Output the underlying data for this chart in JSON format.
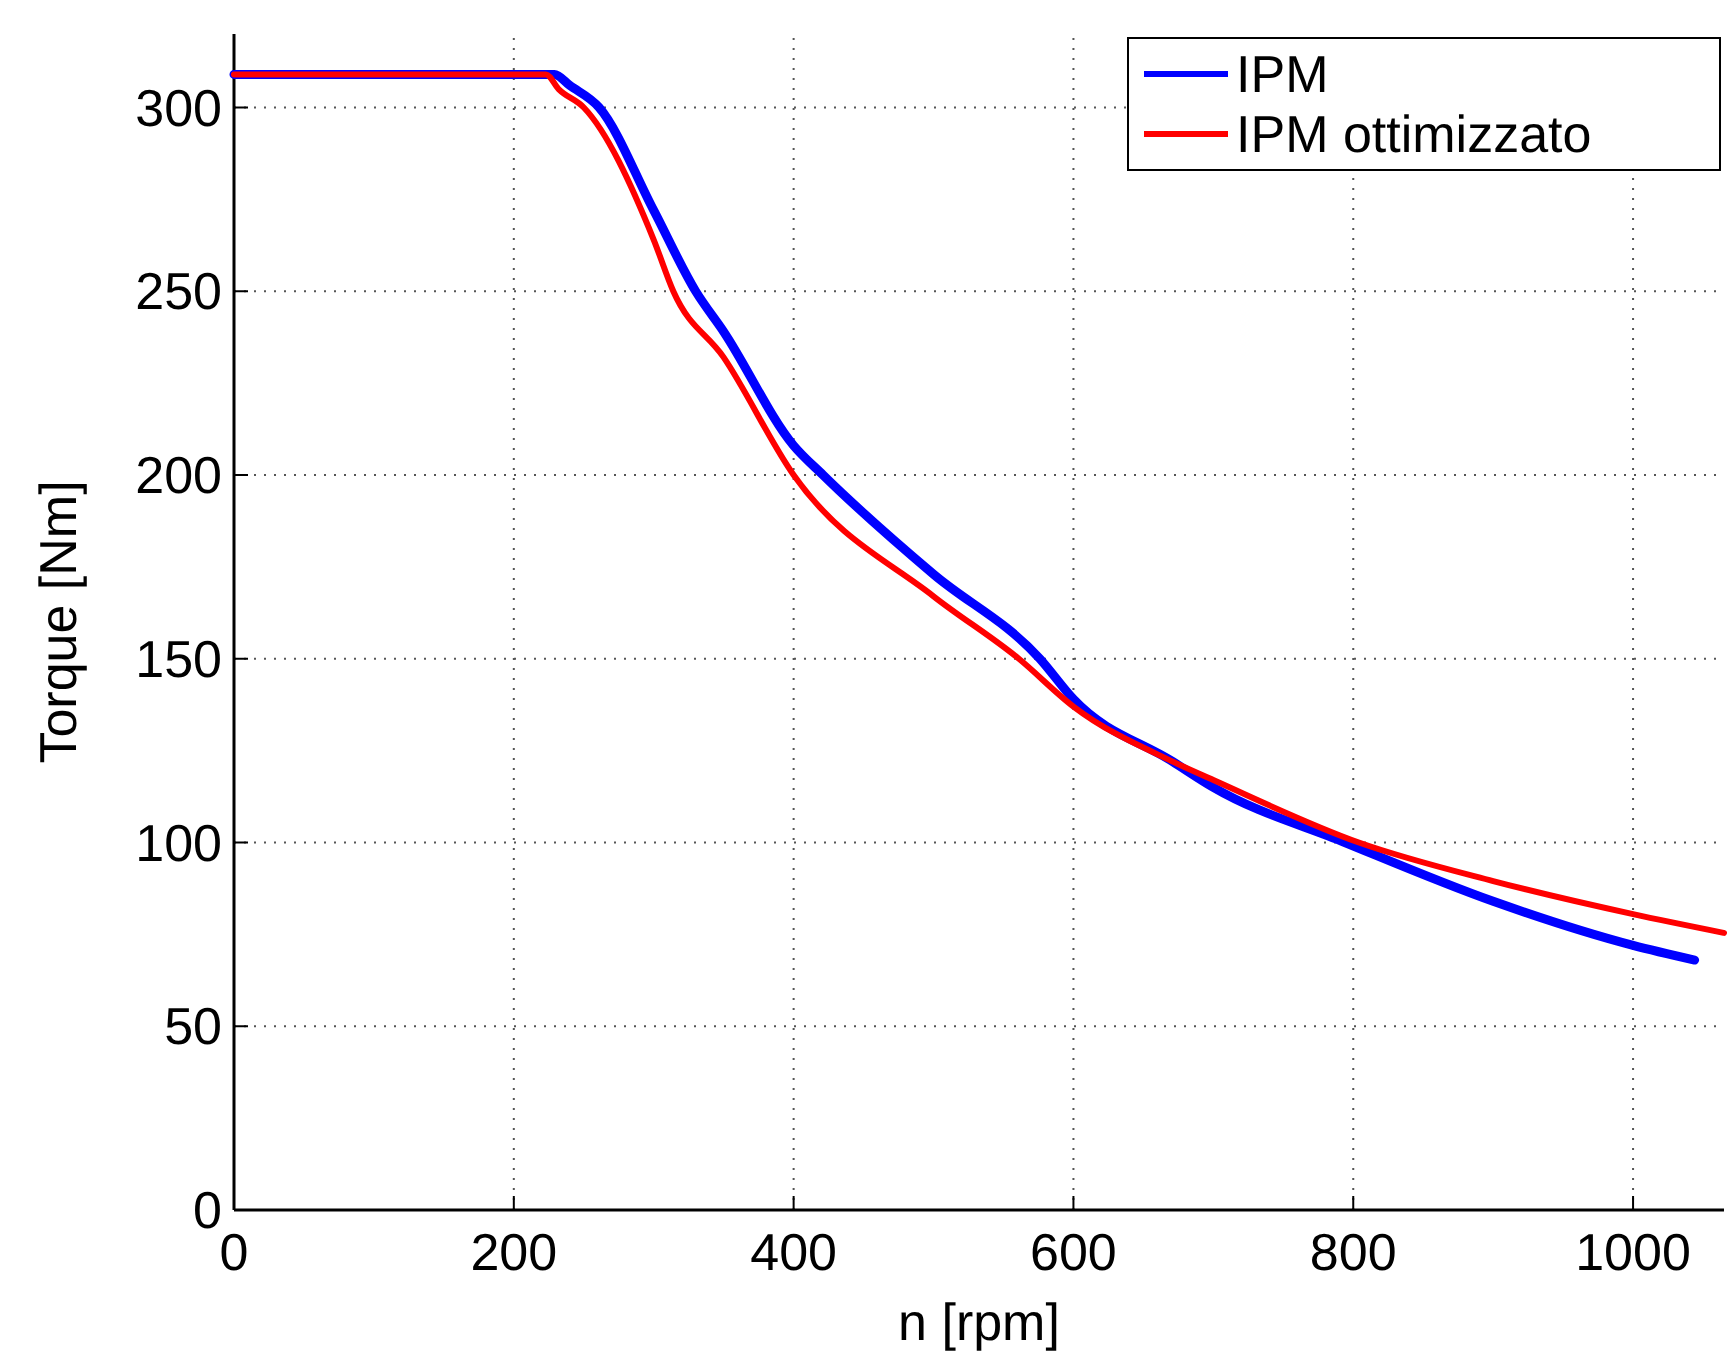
{
  "chart_data": {
    "type": "line",
    "xlabel": "n [rpm]",
    "ylabel": "Torque [Nm]",
    "xlim": [
      0,
      1065
    ],
    "ylim": [
      0,
      320
    ],
    "xticks": [
      0,
      200,
      400,
      600,
      800,
      1000
    ],
    "yticks": [
      0,
      50,
      100,
      150,
      200,
      250,
      300
    ],
    "grid": true,
    "legend": "top right",
    "line_style": "solid",
    "marker": "none",
    "series": [
      {
        "name": "IPM",
        "color": "#0000ff",
        "x": [
          0,
          220,
          229,
          240,
          261,
          300,
          330,
          350,
          400,
          421,
          500,
          576,
          600,
          671,
          700,
          794,
          900,
          1000,
          1044
        ],
        "values": [
          309,
          309,
          309,
          306,
          300,
          272,
          250,
          239,
          208,
          200,
          173,
          150,
          139,
          122,
          115,
          100,
          84,
          72,
          68
        ]
      },
      {
        "name": "IPM ottimizzato",
        "color": "#ff0000",
        "x": [
          0,
          215,
          223,
          232,
          250,
          300,
          314,
          350,
          400,
          500,
          561,
          600,
          671,
          700,
          804,
          900,
          1000,
          1065
        ],
        "values": [
          309,
          309,
          309,
          305,
          300,
          264,
          250,
          232,
          200,
          167,
          150,
          137,
          122,
          117,
          100,
          89.5,
          80.5,
          75.4
        ]
      }
    ]
  }
}
